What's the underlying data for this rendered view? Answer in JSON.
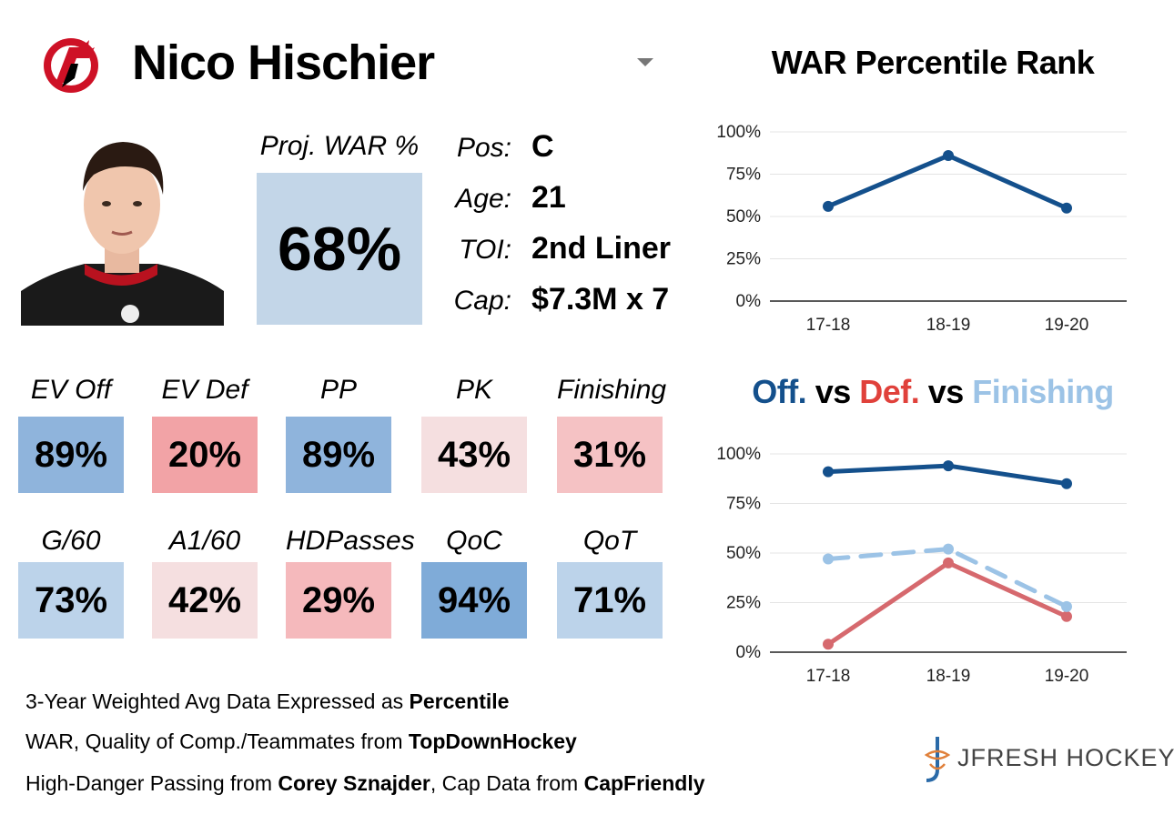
{
  "header": {
    "player_name": "Nico Hischier",
    "chart1_title": "WAR Percentile Rank"
  },
  "colors": {
    "navy": "#14508c",
    "red": "#d6696e",
    "lightblue": "#9cc3e6",
    "proj_box": "#c3d6e8"
  },
  "icons": {
    "logo": "devils-logo-icon",
    "dropdown": "chevron-down-icon",
    "brand": "jfresh-logo-icon"
  },
  "proj_war": {
    "label": "Proj. WAR %",
    "value": "68%"
  },
  "bio": [
    {
      "label": "Pos:",
      "value": "C"
    },
    {
      "label": "Age:",
      "value": "21"
    },
    {
      "label": "TOI:",
      "value": "2nd Liner"
    },
    {
      "label": "Cap:",
      "value": "$7.3M x 7"
    }
  ],
  "stats": [
    {
      "label": "EV Off",
      "value": "89%",
      "color": "#8fb4dc"
    },
    {
      "label": "EV Def",
      "value": "20%",
      "color": "#f2a3a6"
    },
    {
      "label": "PP",
      "value": "89%",
      "color": "#8fb4dc"
    },
    {
      "label": "PK",
      "value": "43%",
      "color": "#f5dfe0"
    },
    {
      "label": "Finishing",
      "value": "31%",
      "color": "#f5c2c4"
    },
    {
      "label": "G/60",
      "value": "73%",
      "color": "#bcd3ea"
    },
    {
      "label": "A1/60",
      "value": "42%",
      "color": "#f5dfe0"
    },
    {
      "label": "HDPasses",
      "value": "29%",
      "color": "#f5b9bc"
    },
    {
      "label": "QoC",
      "value": "94%",
      "color": "#7fabd8"
    },
    {
      "label": "QoT",
      "value": "71%",
      "color": "#bcd3ea"
    }
  ],
  "chart2_title": {
    "off": "Off.",
    "vs1": " vs ",
    "def": "Def.",
    "vs2": " vs ",
    "fin": "Finishing"
  },
  "footer": {
    "line1_pre": "3-Year Weighted Avg Data Expressed as ",
    "line1_bold": "Percentile",
    "line2_pre": "WAR, Quality of Comp./Teammates from ",
    "line2_bold": "TopDownHockey",
    "line3_pre": "High-Danger Passing from ",
    "line3_bold1": "Corey Sznajder",
    "line3_mid": ", Cap Data from ",
    "line3_bold2": "CapFriendly",
    "brand": "JFRESH HOCKEY"
  },
  "chart_data": [
    {
      "type": "line",
      "title": "WAR Percentile Rank",
      "categories": [
        "17-18",
        "18-19",
        "19-20"
      ],
      "series": [
        {
          "values": [
            56,
            86,
            55
          ],
          "color": "#14508c",
          "dashed": false
        }
      ],
      "yticks": [
        "0%",
        "25%",
        "50%",
        "75%",
        "100%"
      ],
      "ylim": [
        0,
        100
      ],
      "grid": true
    },
    {
      "type": "line",
      "title": "Off. vs Def. vs Finishing",
      "categories": [
        "17-18",
        "18-19",
        "19-20"
      ],
      "series": [
        {
          "name": "Off.",
          "values": [
            91,
            94,
            85
          ],
          "color": "#14508c",
          "dashed": false
        },
        {
          "name": "Def.",
          "values": [
            4,
            45,
            18
          ],
          "color": "#d6696e",
          "dashed": false
        },
        {
          "name": "Finishing",
          "values": [
            47,
            52,
            23
          ],
          "color": "#9cc3e6",
          "dashed": true
        }
      ],
      "yticks": [
        "0%",
        "25%",
        "50%",
        "75%",
        "100%"
      ],
      "ylim": [
        0,
        100
      ],
      "grid": true
    }
  ]
}
